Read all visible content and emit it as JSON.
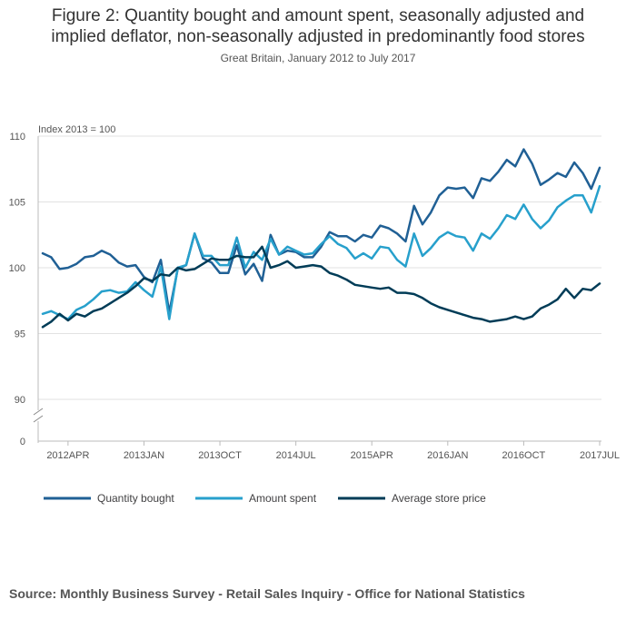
{
  "chart_data": {
    "type": "line",
    "title_line1": "Figure 2: Quantity bought and amount spent, seasonally adjusted and",
    "title_line2": "implied deflator, non-seasonally adjusted in predominantly food stores",
    "subtitle": "Great Britain, January 2012 to July 2017",
    "ylabel": "Index 2013 = 100",
    "ylim": [
      90,
      110
    ],
    "y_ticks": [
      110,
      105,
      100,
      95,
      90
    ],
    "y_break_label": "0",
    "x_tick_labels": [
      "2012APR",
      "2013JAN",
      "2013OCT",
      "2014JUL",
      "2015APR",
      "2016JAN",
      "2016OCT",
      "2017JUL"
    ],
    "x_tick_index": [
      3,
      12,
      21,
      30,
      39,
      48,
      57,
      66
    ],
    "x_start": "2012 JAN",
    "x_end": "2017 JUL",
    "series": [
      {
        "name": "Quantity bought",
        "color": "#206095",
        "values": [
          101.1,
          100.8,
          99.9,
          100.0,
          100.3,
          100.8,
          100.9,
          101.3,
          101.0,
          100.4,
          100.1,
          100.2,
          99.3,
          98.9,
          100.6,
          96.6,
          99.9,
          100.2,
          102.6,
          100.7,
          100.4,
          99.6,
          99.6,
          101.7,
          99.5,
          100.3,
          99.0,
          102.5,
          101.0,
          101.3,
          101.2,
          100.8,
          100.8,
          101.6,
          102.7,
          102.4,
          102.4,
          102.0,
          102.5,
          102.3,
          103.2,
          103.0,
          102.6,
          102.0,
          104.7,
          103.3,
          104.2,
          105.5,
          106.1,
          106.0,
          106.1,
          105.3,
          106.8,
          106.6,
          107.3,
          108.2,
          107.7,
          109.0,
          107.9,
          106.3,
          106.7,
          107.2,
          106.9,
          108.0,
          107.2,
          106.0,
          107.6
        ]
      },
      {
        "name": "Amount spent",
        "color": "#27a0cc",
        "values": [
          96.5,
          96.7,
          96.4,
          96.1,
          96.8,
          97.1,
          97.6,
          98.2,
          98.3,
          98.1,
          98.2,
          98.9,
          98.3,
          97.8,
          100.1,
          96.1,
          100.0,
          100.2,
          102.6,
          100.9,
          100.9,
          100.2,
          100.2,
          102.3,
          100.0,
          101.2,
          100.6,
          102.2,
          101.0,
          101.6,
          101.3,
          101.0,
          101.1,
          101.8,
          102.4,
          101.8,
          101.5,
          100.7,
          101.1,
          100.7,
          101.6,
          101.5,
          100.6,
          100.1,
          102.6,
          100.9,
          101.5,
          102.3,
          102.7,
          102.4,
          102.3,
          101.3,
          102.6,
          102.2,
          103.0,
          104.0,
          103.7,
          104.8,
          103.7,
          103.0,
          103.6,
          104.6,
          105.1,
          105.5,
          105.5,
          104.2,
          106.2
        ]
      },
      {
        "name": "Average store price",
        "color": "#003c57",
        "values": [
          95.5,
          95.9,
          96.5,
          96.0,
          96.5,
          96.3,
          96.7,
          96.9,
          97.3,
          97.7,
          98.1,
          98.6,
          99.2,
          99.0,
          99.5,
          99.4,
          100.0,
          99.8,
          99.9,
          100.3,
          100.7,
          100.6,
          100.6,
          100.9,
          100.8,
          100.8,
          101.6,
          100.0,
          100.2,
          100.5,
          100.0,
          100.1,
          100.2,
          100.1,
          99.6,
          99.4,
          99.1,
          98.7,
          98.6,
          98.5,
          98.4,
          98.5,
          98.1,
          98.1,
          98.0,
          97.7,
          97.3,
          97.0,
          96.8,
          96.6,
          96.4,
          96.2,
          96.1,
          95.9,
          96.0,
          96.1,
          96.3,
          96.1,
          96.3,
          96.9,
          97.2,
          97.6,
          98.4,
          97.7,
          98.4,
          98.3,
          98.8
        ]
      }
    ]
  },
  "source_text": "Source: Monthly Business Survey - Retail Sales Inquiry - Office for National Statistics"
}
